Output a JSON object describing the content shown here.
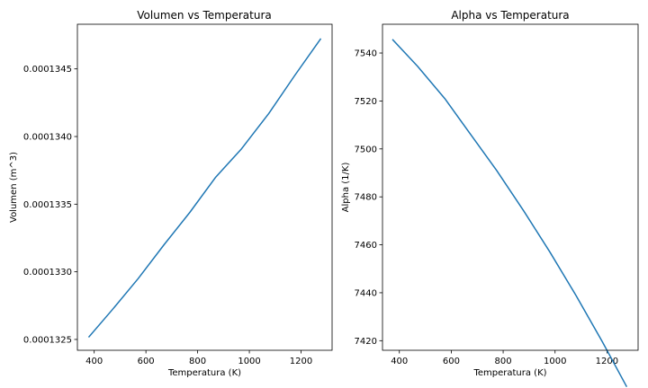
{
  "chart_data": [
    {
      "type": "line",
      "title": "Volumen vs Temperatura",
      "xlabel": "Temperatura (K)",
      "ylabel": "Volumen (m^3)",
      "xlim": [
        335,
        1320
      ],
      "ylim": [
        0.00013242,
        0.00013483
      ],
      "xticks": [
        400,
        600,
        800,
        1000,
        1200
      ],
      "xtick_labels": [
        "400",
        "600",
        "800",
        "1000",
        "1200"
      ],
      "yticks": [
        0.0001325,
        0.000133,
        0.0001335,
        0.000134,
        0.0001345
      ],
      "ytick_labels": [
        "0.0001325",
        "0.0001330",
        "0.0001335",
        "0.0001340",
        "0.0001345"
      ],
      "color": "#1f77b4",
      "series": [
        {
          "x": [
            380,
            470,
            570,
            670,
            770,
            870,
            970,
            1075,
            1175,
            1275
          ],
          "y": [
            0.00013252,
            0.00013272,
            0.00013295,
            0.0001332,
            0.00013344,
            0.0001337,
            0.00013391,
            0.00013417,
            0.00013445,
            0.00013472
          ]
        }
      ]
    },
    {
      "type": "line",
      "title": "Alpha vs Temperatura",
      "xlabel": "Temperatura (K)",
      "ylabel": "Alpha (1/K)",
      "xlim": [
        335,
        1320
      ],
      "ylim": [
        7416,
        7552
      ],
      "xticks": [
        400,
        600,
        800,
        1000,
        1200
      ],
      "xtick_labels": [
        "400",
        "600",
        "800",
        "1000",
        "1200"
      ],
      "yticks": [
        7420,
        7440,
        7460,
        7480,
        7500,
        7520,
        7540
      ],
      "ytick_labels": [
        "7420",
        "7440",
        "7460",
        "7480",
        "7500",
        "7520",
        "7540"
      ],
      "color": "#1f77b4",
      "series": [
        {
          "x": [
            375,
            470,
            575,
            675,
            775,
            880,
            980,
            1080,
            1180,
            1275
          ],
          "y": [
            7545.5,
            7534.5,
            7521,
            7506,
            7491,
            7474,
            7457,
            7439,
            7420,
            7401
          ]
        }
      ]
    }
  ]
}
